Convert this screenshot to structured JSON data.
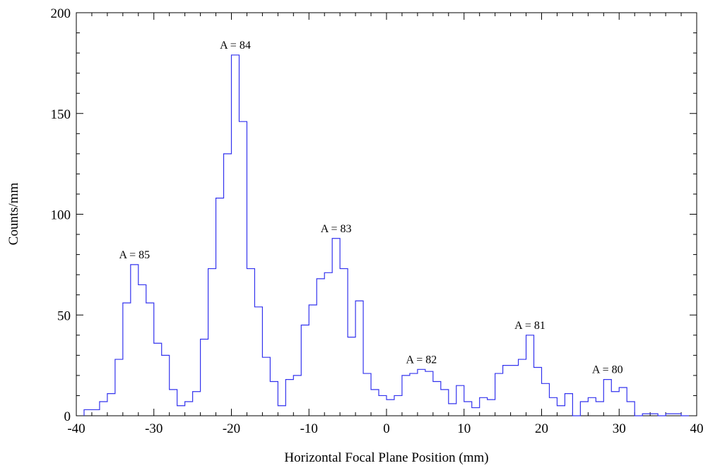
{
  "chart_data": {
    "type": "histogram",
    "title": "",
    "xlabel": "Horizontal Focal Plane Position (mm)",
    "ylabel": "Counts/mm",
    "xlim": [
      -40,
      40
    ],
    "ylim": [
      0,
      200
    ],
    "x_ticks": [
      -40,
      -30,
      -20,
      -10,
      0,
      10,
      20,
      30,
      40
    ],
    "y_ticks": [
      0,
      50,
      100,
      150,
      200
    ],
    "grid": false,
    "line_color": "#3333ee",
    "bin_width": 1,
    "bin_start": -39,
    "values": [
      3,
      3,
      7,
      11,
      28,
      56,
      75,
      65,
      56,
      36,
      30,
      13,
      5,
      7,
      12,
      38,
      73,
      108,
      130,
      179,
      146,
      73,
      54,
      29,
      17,
      5,
      18,
      20,
      45,
      55,
      68,
      71,
      88,
      73,
      39,
      57,
      21,
      13,
      10,
      8,
      10,
      20,
      21,
      23,
      22,
      17,
      13,
      6,
      15,
      7,
      4,
      9,
      8,
      21,
      25,
      25,
      28,
      40,
      24,
      16,
      9,
      5,
      11,
      0,
      7,
      9,
      7,
      18,
      12,
      14,
      7,
      0,
      1,
      1,
      0,
      1,
      1,
      0
    ],
    "annotations": [
      {
        "text": "A = 85",
        "x": -32.5,
        "y": 75
      },
      {
        "text": "A = 84",
        "x": -19.5,
        "y": 179
      },
      {
        "text": "A = 83",
        "x": -6.5,
        "y": 88
      },
      {
        "text": "A = 82",
        "x": 4.5,
        "y": 23
      },
      {
        "text": "A = 81",
        "x": 18.5,
        "y": 40
      },
      {
        "text": "A = 80",
        "x": 28.5,
        "y": 18
      }
    ]
  }
}
